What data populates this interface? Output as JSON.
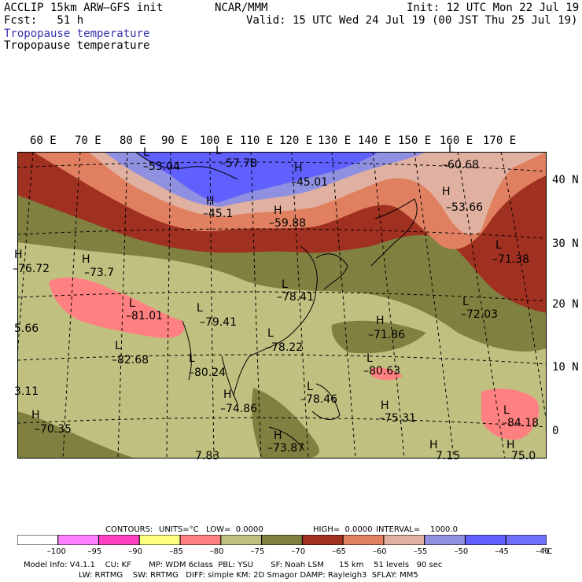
{
  "header": {
    "model": "ACCLIP 15km ARW–GFS init",
    "org": "NCAR/MMM",
    "init": "Init: 12 UTC Mon 22 Jul 19",
    "fcst": "Fcst:   51 h",
    "valid": "Valid: 15 UTC Wed 24 Jul 19 (00 JST Thu 25 Jul 19)",
    "field_line1": "Tropopause temperature",
    "field_line2": "Tropopause temperature"
  },
  "map": {
    "lon_labels": [
      "60 E",
      "70 E",
      "80 E",
      "90 E",
      "100 E",
      "110 E",
      "120 E",
      "130 E",
      "140 E",
      "150 E",
      "160 E",
      "170 E"
    ],
    "lat_labels": [
      "40 N",
      "30 N",
      "20 N",
      "10 N",
      "0"
    ],
    "markers": [
      {
        "letter": "L",
        "value": "–53.04"
      },
      {
        "letter": "L",
        "value": "–57.78"
      },
      {
        "letter": "H",
        "value": "–45.01"
      },
      {
        "letter": "L",
        "value": "–60.68"
      },
      {
        "letter": "H",
        "value": "–53.66"
      },
      {
        "letter": "H",
        "value": "–45.1"
      },
      {
        "letter": "H",
        "value": "–59.88"
      },
      {
        "letter": "H",
        "value": "–76.72"
      },
      {
        "letter": "H",
        "value": "–73.7"
      },
      {
        "letter": "L",
        "value": "–71.38"
      },
      {
        "letter": "L",
        "value": "–78.41"
      },
      {
        "letter": "L",
        "value": "–81.01"
      },
      {
        "letter": "L",
        "value": "–79.41"
      },
      {
        "letter": "L",
        "value": "–72.03"
      },
      {
        "letter": "",
        "value": "5.66"
      },
      {
        "letter": "H",
        "value": "–71.86"
      },
      {
        "letter": "L",
        "value": "–78.22"
      },
      {
        "letter": "L",
        "value": "–82.68"
      },
      {
        "letter": "L",
        "value": "–80.24"
      },
      {
        "letter": "L",
        "value": "–80.63"
      },
      {
        "letter": "",
        "value": "3.11"
      },
      {
        "letter": "H",
        "value": "–74.86"
      },
      {
        "letter": "L",
        "value": "–78.46"
      },
      {
        "letter": "H",
        "value": "–75.31"
      },
      {
        "letter": "L",
        "value": "–84.18"
      },
      {
        "letter": "H",
        "value": "–70.35"
      },
      {
        "letter": "H",
        "value": "–73.87"
      },
      {
        "letter": "",
        "value": "7.83"
      },
      {
        "letter": "H",
        "value": "7.15"
      },
      {
        "letter": "H",
        "value": "75.0"
      }
    ]
  },
  "contours": {
    "label": "CONTOURS:",
    "units": "UNITS=°C",
    "low": "LOW=  0.0000",
    "high": "HIGH=  0.0000",
    "interval": "INTERVAL=    1000.0"
  },
  "colorbar": {
    "ticks": [
      "–100",
      "–95",
      "–90",
      "–85",
      "–80",
      "–75",
      "–70",
      "–65",
      "–60",
      "–55",
      "–50",
      "–45",
      "–40"
    ],
    "unit": "°C",
    "colors": [
      "#ffffff",
      "#ff80ff",
      "#ff40c0",
      "#ffff80",
      "#ff8080",
      "#c0c080",
      "#808040",
      "#a03020",
      "#e08060",
      "#e0b0a0",
      "#9090e0",
      "#6060ff",
      "#7070ff"
    ]
  },
  "model_info": {
    "line1": "Model Info: V4.1.1    CU: KF       MP: WDM 6class  PBL: YSU       SF: Noah LSM      15 km    51 levels   90 sec",
    "line2": "LW: RRTMG    SW: RRTMG   DIFF: simple KM: 2D Smagor DAMP: Rayleigh3  SFLAY: MM5"
  }
}
